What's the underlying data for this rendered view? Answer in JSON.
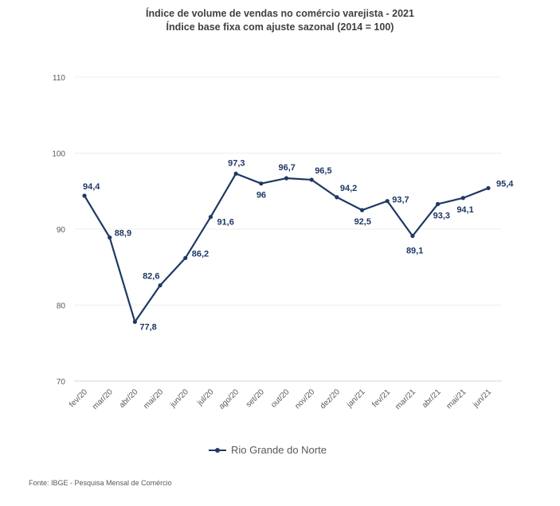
{
  "chart_data": {
    "type": "line",
    "title": "Índice de volume de vendas no comércio varejista - 2021",
    "subtitle": "Índice base fixa com ajuste sazonal (2014 = 100)",
    "xlabel": "",
    "ylabel": "",
    "categories": [
      "fev/20",
      "mar/20",
      "abr/20",
      "mai/20",
      "jun/20",
      "jul/20",
      "ago/20",
      "set/20",
      "out/20",
      "nov/20",
      "dez/20",
      "jan/21",
      "fev/21",
      "mar/21",
      "abr/21",
      "mai/21",
      "jun/21"
    ],
    "series": [
      {
        "name": "Rio Grande do Norte",
        "color": "#1f3864",
        "values": [
          94.4,
          88.9,
          77.8,
          82.6,
          86.2,
          91.6,
          97.3,
          96,
          96.7,
          96.5,
          94.2,
          92.5,
          93.7,
          89.1,
          93.3,
          94.1,
          95.4
        ],
        "labels": [
          "94,4",
          "88,9",
          "77,8",
          "82,6",
          "86,2",
          "91,6",
          "97,3",
          "96",
          "96,7",
          "96,5",
          "94,2",
          "92,5",
          "93,7",
          "89,1",
          "93,3",
          "94,1",
          "95,4"
        ]
      }
    ],
    "ylim": [
      70,
      110
    ],
    "yticks": [
      70,
      80,
      90,
      100,
      110
    ],
    "grid": true,
    "legend": "bottom"
  },
  "source": "Fonte: IBGE - Pesquisa Mensal de Comércio"
}
